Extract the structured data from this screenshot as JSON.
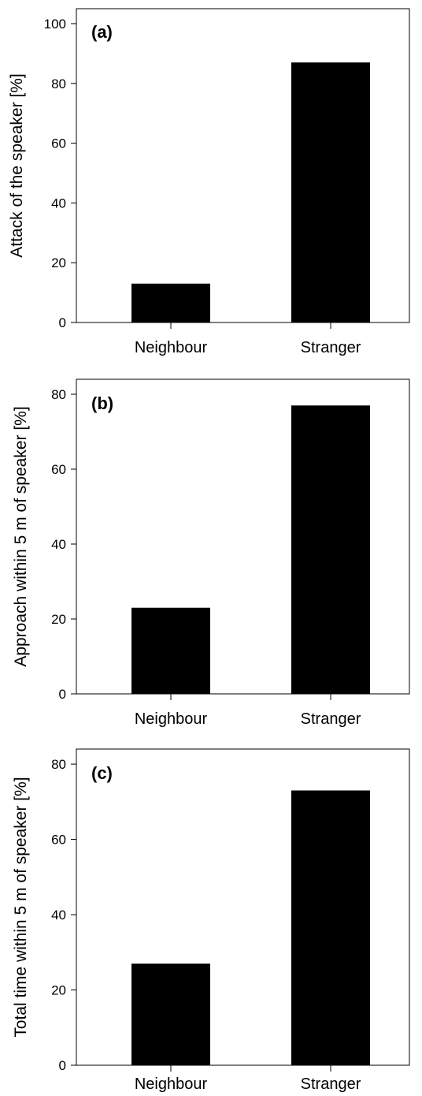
{
  "chart_data": [
    {
      "type": "bar",
      "panel_label": "(a)",
      "categories": [
        "Neighbour",
        "Stranger"
      ],
      "values": [
        13,
        87
      ],
      "ylabel": "Attack of the speaker [%]",
      "xlabel": "",
      "ylim": [
        0,
        105
      ],
      "yticks": [
        0,
        20,
        40,
        60,
        80,
        100
      ],
      "bar_color": "#000000",
      "grid": false
    },
    {
      "type": "bar",
      "panel_label": "(b)",
      "categories": [
        "Neighbour",
        "Stranger"
      ],
      "values": [
        23,
        77
      ],
      "ylabel": "Approach within 5 m of speaker [%]",
      "xlabel": "",
      "ylim": [
        0,
        84
      ],
      "yticks": [
        0,
        20,
        40,
        60,
        80
      ],
      "bar_color": "#000000",
      "grid": false
    },
    {
      "type": "bar",
      "panel_label": "(c)",
      "categories": [
        "Neighbour",
        "Stranger"
      ],
      "values": [
        27,
        73
      ],
      "ylabel": "Total time within 5 m of speaker [%]",
      "xlabel": "",
      "ylim": [
        0,
        84
      ],
      "yticks": [
        0,
        20,
        40,
        60,
        80
      ],
      "bar_color": "#000000",
      "grid": false
    }
  ]
}
